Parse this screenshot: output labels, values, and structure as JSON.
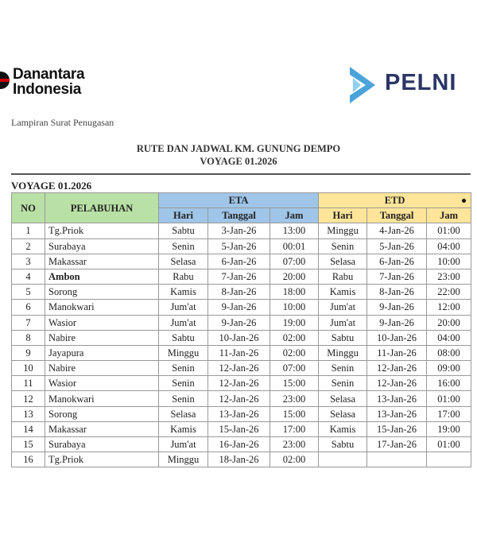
{
  "logos": {
    "danantara": "Danantara Indonesia",
    "pelni": "PELNI"
  },
  "lampiran": "Lampiran Surat Penugasan",
  "title": "RUTE DAN JADWAL KM. GUNUNG DEMPO",
  "subtitle": "VOYAGE 01.2026",
  "voyage_label": "VOYAGE 01.2026",
  "colors": {
    "green": "#b9e0a5",
    "blue": "#9fc5e8",
    "yellow": "#ffe599"
  },
  "table": {
    "headers": {
      "no": "NO",
      "port": "PELABUHAN",
      "eta": "ETA",
      "etd": "ETD",
      "day": "Hari",
      "date": "Tanggal",
      "time": "Jam"
    },
    "rows": [
      {
        "no": "1",
        "port": "Tg.Priok",
        "eta": [
          "Sabtu",
          "3-Jan-26",
          "13:00"
        ],
        "etd": [
          "Minggu",
          "4-Jan-26",
          "01:00"
        ]
      },
      {
        "no": "2",
        "port": "Surabaya",
        "eta": [
          "Senin",
          "5-Jan-26",
          "00:01"
        ],
        "etd": [
          "Senin",
          "5-Jan-26",
          "04:00"
        ]
      },
      {
        "no": "3",
        "port": "Makassar",
        "eta": [
          "Selasa",
          "6-Jan-26",
          "07:00"
        ],
        "etd": [
          "Selasa",
          "6-Jan-26",
          "10:00"
        ]
      },
      {
        "no": "4",
        "port": "Ambon",
        "eta": [
          "Rabu",
          "7-Jan-26",
          "20:00"
        ],
        "etd": [
          "Rabu",
          "7-Jan-26",
          "23:00"
        ]
      },
      {
        "no": "5",
        "port": "Sorong",
        "eta": [
          "Kamis",
          "8-Jan-26",
          "18:00"
        ],
        "etd": [
          "Kamis",
          "8-Jan-26",
          "22:00"
        ]
      },
      {
        "no": "6",
        "port": "Manokwari",
        "eta": [
          "Jum'at",
          "9-Jan-26",
          "10:00"
        ],
        "etd": [
          "Jum'at",
          "9-Jan-26",
          "12:00"
        ]
      },
      {
        "no": "7",
        "port": "Wasior",
        "eta": [
          "Jum'at",
          "9-Jan-26",
          "19:00"
        ],
        "etd": [
          "Jum'at",
          "9-Jan-26",
          "20:00"
        ]
      },
      {
        "no": "8",
        "port": "Nabire",
        "eta": [
          "Sabtu",
          "10-Jan-26",
          "02:00"
        ],
        "etd": [
          "Sabtu",
          "10-Jan-26",
          "04:00"
        ]
      },
      {
        "no": "9",
        "port": "Jayapura",
        "eta": [
          "Minggu",
          "11-Jan-26",
          "02:00"
        ],
        "etd": [
          "Minggu",
          "11-Jan-26",
          "08:00"
        ]
      },
      {
        "no": "10",
        "port": "Nabire",
        "eta": [
          "Senin",
          "12-Jan-26",
          "07:00"
        ],
        "etd": [
          "Senin",
          "12-Jan-26",
          "09:00"
        ]
      },
      {
        "no": "11",
        "port": "Wasior",
        "eta": [
          "Senin",
          "12-Jan-26",
          "15:00"
        ],
        "etd": [
          "Senin",
          "12-Jan-26",
          "16:00"
        ]
      },
      {
        "no": "12",
        "port": "Manokwari",
        "eta": [
          "Senin",
          "12-Jan-26",
          "23:00"
        ],
        "etd": [
          "Selasa",
          "13-Jan-26",
          "01:00"
        ]
      },
      {
        "no": "13",
        "port": "Sorong",
        "eta": [
          "Selasa",
          "13-Jan-26",
          "15:00"
        ],
        "etd": [
          "Selasa",
          "13-Jan-26",
          "17:00"
        ]
      },
      {
        "no": "14",
        "port": "Makassar",
        "eta": [
          "Kamis",
          "15-Jan-26",
          "17:00"
        ],
        "etd": [
          "Kamis",
          "15-Jan-26",
          "19:00"
        ]
      },
      {
        "no": "15",
        "port": "Surabaya",
        "eta": [
          "Jum'at",
          "16-Jan-26",
          "23:00"
        ],
        "etd": [
          "Sabtu",
          "17-Jan-26",
          "01:00"
        ]
      },
      {
        "no": "16",
        "port": "Tg.Priok",
        "eta": [
          "Minggu",
          "18-Jan-26",
          "02:00"
        ],
        "etd": [
          "",
          "",
          ""
        ]
      }
    ]
  }
}
